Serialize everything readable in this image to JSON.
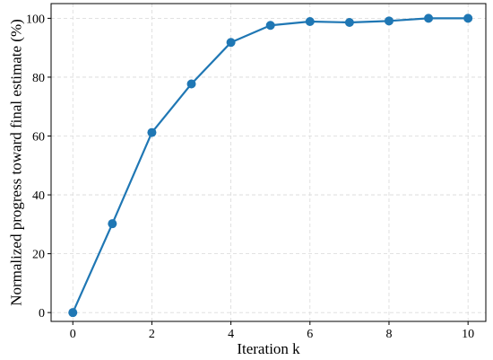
{
  "chart_data": {
    "type": "line",
    "title": "",
    "xlabel": "Iteration k",
    "ylabel": "Normalized progress toward final estimate (%)",
    "xlim": [
      -0.55,
      10.45
    ],
    "ylim": [
      -3,
      105
    ],
    "xticks": [
      0,
      2,
      4,
      6,
      8,
      10
    ],
    "yticks": [
      0,
      20,
      40,
      60,
      80,
      100
    ],
    "grid": true,
    "series": [
      {
        "color": "#1f77b4",
        "marker": "circle",
        "x": [
          0,
          1,
          2,
          3,
          4,
          5,
          6,
          7,
          8,
          9,
          10
        ],
        "y": [
          0,
          30.2,
          61.2,
          77.7,
          91.8,
          97.6,
          98.9,
          98.6,
          99.1,
          100,
          100
        ]
      }
    ]
  }
}
